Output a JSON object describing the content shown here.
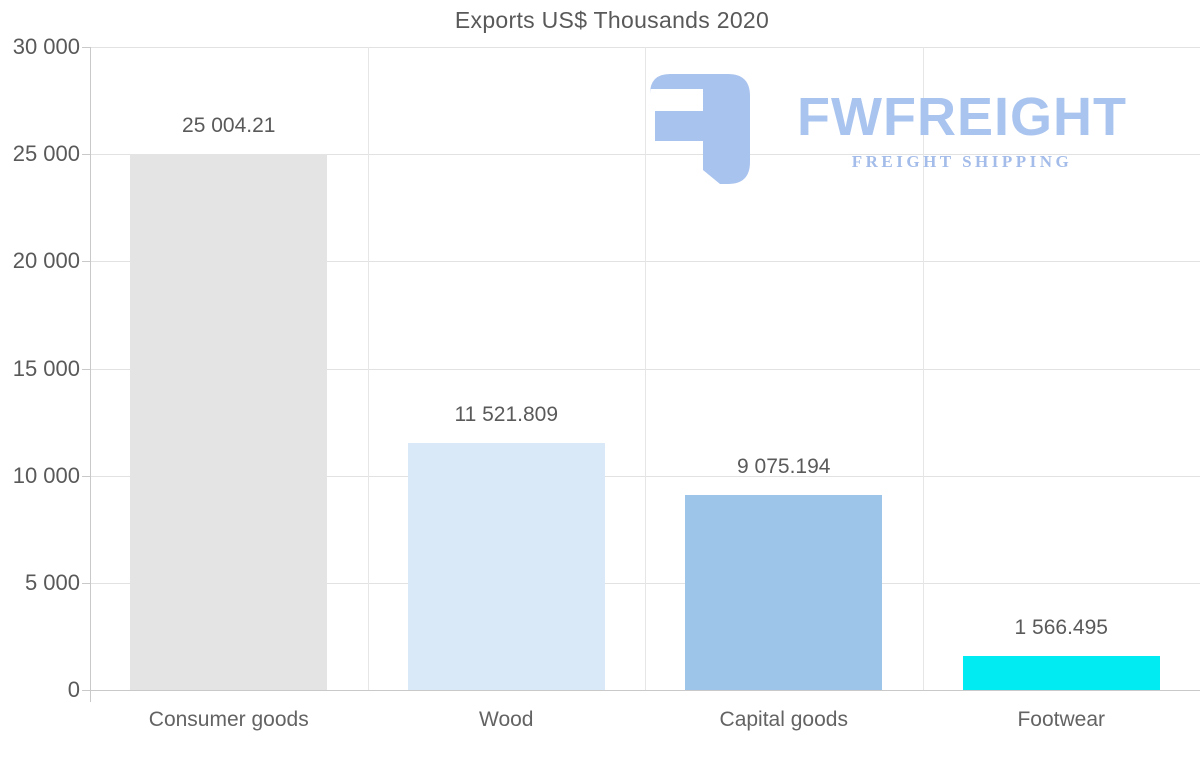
{
  "page": {
    "background": "#ffffff"
  },
  "chart_data": {
    "type": "bar",
    "title": "Exports US$ Thousands 2020",
    "categories": [
      "Consumer goods",
      "Wood",
      "Capital goods",
      "Footwear"
    ],
    "values": [
      25004.21,
      11521.809,
      9075.194,
      1566.495
    ],
    "value_labels": [
      "25 004.21",
      "11 521.809",
      "9 075.194",
      "1 566.495"
    ],
    "bar_colors": [
      "#e4e4e4",
      "#dae9f8",
      "#9dc4e9",
      "#00ecf2"
    ],
    "ylim": [
      0,
      30000
    ],
    "yticks": [
      0,
      5000,
      10000,
      15000,
      20000,
      25000,
      30000
    ],
    "ytick_labels": [
      "0",
      "5 000",
      "10 000",
      "15 000",
      "20 000",
      "25 000",
      "30 000"
    ],
    "grid": true,
    "legend": false,
    "xlabel": "",
    "ylabel": ""
  },
  "watermark": {
    "brand": "FWFREIGHT",
    "tagline": "FREIGHT SHIPPING",
    "color": "#a9c4ef"
  }
}
